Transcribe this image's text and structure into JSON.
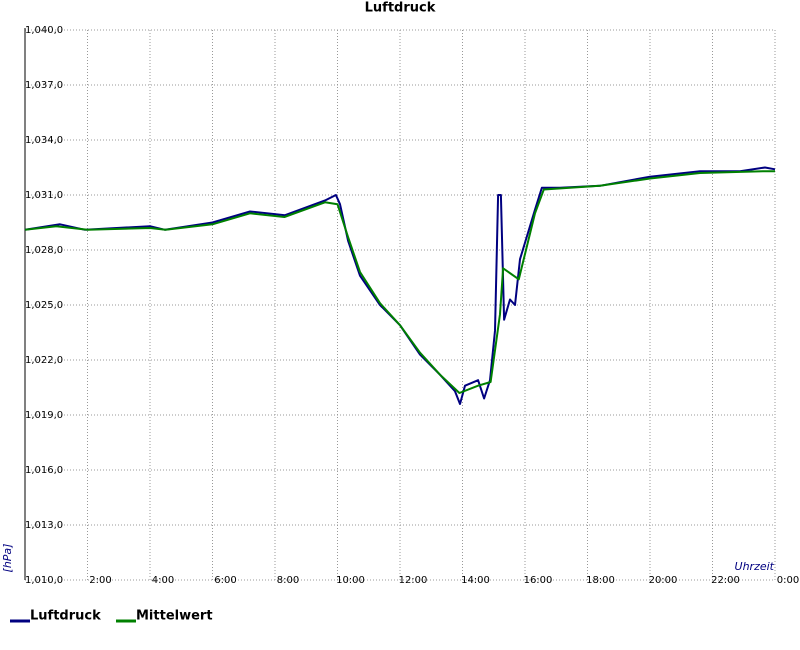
{
  "chart_data": {
    "type": "line",
    "title": "Luftdruck",
    "y_label": "[hPa]",
    "x_label": "Uhrzeit",
    "xlim": [
      0,
      24
    ],
    "xticks": [
      {
        "value": 2,
        "label": "2:00"
      },
      {
        "value": 4,
        "label": "4:00"
      },
      {
        "value": 6,
        "label": "6:00"
      },
      {
        "value": 8,
        "label": "8:00"
      },
      {
        "value": 10,
        "label": "10:00"
      },
      {
        "value": 12,
        "label": "12:00"
      },
      {
        "value": 14,
        "label": "14:00"
      },
      {
        "value": 16,
        "label": "16:00"
      },
      {
        "value": 18,
        "label": "18:00"
      },
      {
        "value": 20,
        "label": "20:00"
      },
      {
        "value": 22,
        "label": "22:00"
      },
      {
        "value": 24,
        "label": "0:00"
      }
    ],
    "ylim": [
      1010,
      1040
    ],
    "yticks": [
      {
        "value": 1010,
        "label": "1,010,0"
      },
      {
        "value": 1013,
        "label": "1,013,0"
      },
      {
        "value": 1016,
        "label": "1,016,0"
      },
      {
        "value": 1019,
        "label": "1,019,0"
      },
      {
        "value": 1022,
        "label": "1,022,0"
      },
      {
        "value": 1025,
        "label": "1,025,0"
      },
      {
        "value": 1028,
        "label": "1,028,0"
      },
      {
        "value": 1031,
        "label": "1,031,0"
      },
      {
        "value": 1034,
        "label": "1,034,0"
      },
      {
        "value": 1037,
        "label": "1,037,0"
      },
      {
        "value": 1040,
        "label": "1,040,0"
      }
    ],
    "grid": true,
    "series": [
      {
        "name": "Luftdruck",
        "color": "#000080",
        "x": [
          0,
          1.12,
          1.92,
          4,
          4.48,
          6,
          7.2,
          8.32,
          9.6,
          9.95,
          10.08,
          10.34,
          10.72,
          11.36,
          12,
          12.64,
          13.28,
          13.76,
          13.92,
          14.08,
          14.5,
          14.69,
          14.88,
          15.04,
          15.14,
          15.23,
          15.33,
          15.52,
          15.68,
          15.84,
          16.32,
          16.54,
          17.12,
          18.4,
          20,
          21.6,
          22.88,
          23.68,
          24
        ],
        "values": [
          1029.1,
          1029.4,
          1029.1,
          1029.3,
          1029.1,
          1029.5,
          1030.1,
          1029.9,
          1030.7,
          1031.0,
          1030.5,
          1028.5,
          1026.6,
          1025.0,
          1023.9,
          1022.3,
          1021.2,
          1020.3,
          1019.6,
          1020.6,
          1020.9,
          1019.9,
          1020.9,
          1023.6,
          1031.0,
          1031.0,
          1024.2,
          1025.3,
          1025.0,
          1027.5,
          1030.2,
          1031.4,
          1031.4,
          1031.5,
          1032.0,
          1032.3,
          1032.3,
          1032.5,
          1032.4
        ]
      },
      {
        "name": "Mittelwert",
        "color": "#008000",
        "x": [
          0,
          1,
          2,
          4,
          4.5,
          6,
          7.2,
          8.3,
          9.6,
          10.0,
          10.34,
          10.72,
          11.36,
          12,
          12.64,
          13.28,
          13.9,
          14.5,
          14.9,
          15.2,
          15.3,
          15.8,
          16.32,
          16.6,
          18.4,
          20,
          21.6,
          23.7,
          24
        ],
        "values": [
          1029.1,
          1029.3,
          1029.1,
          1029.2,
          1029.1,
          1029.4,
          1030.0,
          1029.8,
          1030.6,
          1030.5,
          1028.7,
          1026.8,
          1025.1,
          1023.9,
          1022.4,
          1021.2,
          1020.2,
          1020.6,
          1020.8,
          1024.5,
          1027.0,
          1026.4,
          1030.0,
          1031.3,
          1031.5,
          1031.9,
          1032.2,
          1032.3,
          1032.3
        ]
      }
    ]
  }
}
